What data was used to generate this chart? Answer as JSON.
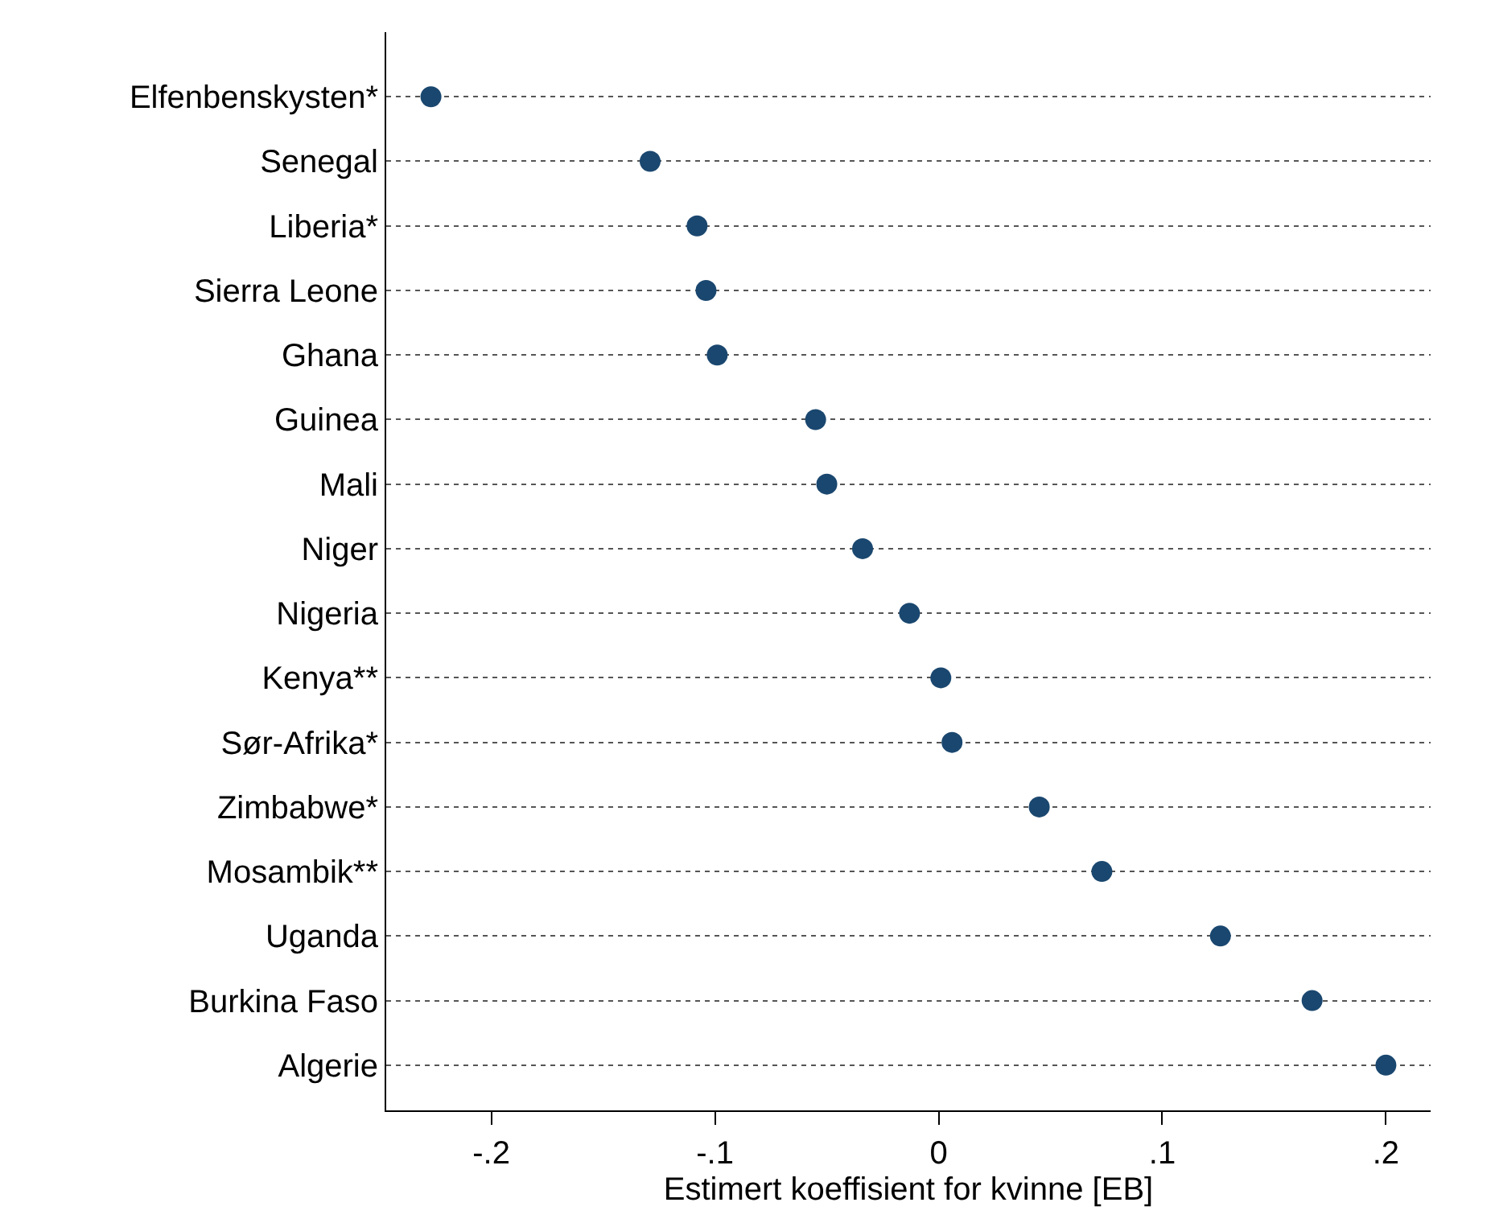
{
  "chart_data": {
    "type": "scatter",
    "xlabel": "Estimert koeffisient for kvinne [EB]",
    "categories": [
      "Elfenbenskysten*",
      "Senegal",
      "Liberia*",
      "Sierra Leone",
      "Ghana",
      "Guinea",
      "Mali",
      "Niger",
      "Nigeria",
      "Kenya**",
      "Sør-Afrika*",
      "Zimbabwe*",
      "Mosambik**",
      "Uganda",
      "Burkina Faso",
      "Algerie"
    ],
    "orientation": "horizontal",
    "series": [
      {
        "color": "#1a476f",
        "values": [
          -0.227,
          -0.129,
          -0.108,
          -0.104,
          -0.099,
          -0.055,
          -0.05,
          -0.034,
          -0.013,
          0.001,
          0.006,
          0.045,
          0.073,
          0.126,
          0.167,
          0.2
        ]
      }
    ],
    "xlim": [
      -0.247,
      0.22
    ],
    "xticks": [
      {
        "value": -0.2,
        "label": "-.2"
      },
      {
        "value": -0.1,
        "label": "-.1"
      },
      0,
      {
        "value": 0.1,
        "label": ".1"
      },
      {
        "value": 0.2,
        "label": ".2"
      }
    ],
    "grid": "y",
    "line_style": "dotted",
    "marker": "circle"
  }
}
